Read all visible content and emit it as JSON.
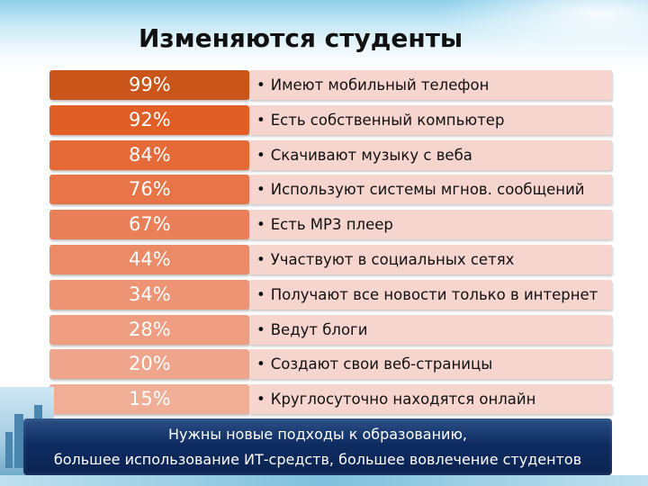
{
  "title": "Изменяются студенты",
  "rows": [
    {
      "percent": "99%",
      "text": "Имеют мобильный телефон",
      "color": "#c9551a"
    },
    {
      "percent": "92%",
      "text": "Есть собственный компьютер",
      "color": "#e15f26"
    },
    {
      "percent": "84%",
      "text": "Скачивают музыку с веба",
      "color": "#e56a38"
    },
    {
      "percent": "76%",
      "text": "Используют системы мгнов. сообщений",
      "color": "#e77547"
    },
    {
      "percent": "67%",
      "text": "Есть MP3 плеер",
      "color": "#e9805a"
    },
    {
      "percent": "44%",
      "text": "Участвуют в социальных сетях",
      "color": "#eb8a66"
    },
    {
      "percent": "34%",
      "text": "Получают все новости только в интернет",
      "color": "#ec9473"
    },
    {
      "percent": "28%",
      "text": "Ведут блоги",
      "color": "#ee9d80"
    },
    {
      "percent": "20%",
      "text": "Создают свои веб-страницы",
      "color": "#efa58b"
    },
    {
      "percent": "15%",
      "text": "Круглосуточно находятся онлайн",
      "color": "#f1ae96"
    }
  ],
  "bullet": "•",
  "banner": {
    "line1": "Нужны новые подходы к образованию,",
    "line2": "большее использование ИТ-средств, большее вовлечение студентов"
  }
}
